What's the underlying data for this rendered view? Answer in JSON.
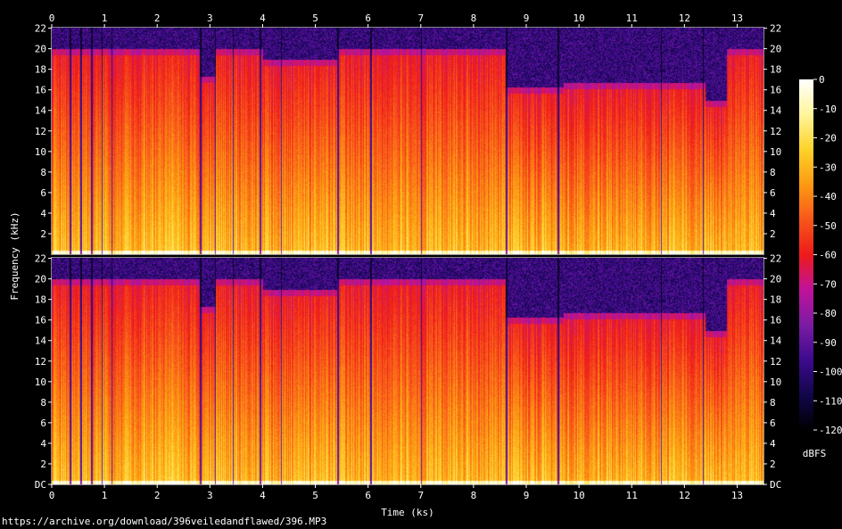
{
  "chart_data": {
    "type": "heatmap",
    "xlabel": "Time (ks)",
    "ylabel": "Frequency (kHz)",
    "x_ticks": [
      "0",
      "1",
      "2",
      "3",
      "4",
      "5",
      "6",
      "7",
      "8",
      "9",
      "10",
      "11",
      "12",
      "13"
    ],
    "x_range": [
      0,
      13.5
    ],
    "channels": [
      {
        "channel": 1,
        "y_ticks": [
          "22",
          "20",
          "18",
          "16",
          "14",
          "12",
          "10",
          "8",
          "6",
          "4",
          "2"
        ]
      },
      {
        "channel": 2,
        "y_ticks": [
          "22",
          "20",
          "18",
          "16",
          "14",
          "12",
          "10",
          "8",
          "6",
          "4",
          "2",
          "DC"
        ]
      }
    ],
    "y_range_khz": [
      0,
      22.05
    ],
    "colorbar": {
      "label": "dBFS",
      "ticks": [
        "0",
        "-10",
        "-20",
        "-30",
        "-40",
        "-50",
        "-60",
        "-70",
        "-80",
        "-90",
        "-100",
        "-110",
        "-120"
      ],
      "range": [
        -120,
        0
      ]
    },
    "lowpass_segments_khz": [
      {
        "start": 0,
        "end": 2.8,
        "cutoff": 20
      },
      {
        "start": 2.8,
        "end": 3.1,
        "cutoff": 17.3
      },
      {
        "start": 3.1,
        "end": 4.0,
        "cutoff": 20
      },
      {
        "start": 4.0,
        "end": 5.4,
        "cutoff": 19
      },
      {
        "start": 5.4,
        "end": 8.6,
        "cutoff": 20
      },
      {
        "start": 8.6,
        "end": 9.7,
        "cutoff": 16.3
      },
      {
        "start": 9.7,
        "end": 12.4,
        "cutoff": 16.7
      },
      {
        "start": 12.4,
        "end": 12.8,
        "cutoff": 15
      },
      {
        "start": 12.8,
        "end": 13.5,
        "cutoff": 20
      }
    ],
    "quiet_gaps_ks": [
      0.35,
      0.55,
      0.75,
      0.95,
      1.13,
      2.82,
      3.1,
      3.43,
      3.95,
      4.35,
      5.42,
      6.05,
      7.0,
      8.62,
      9.6,
      11.55,
      12.35
    ]
  },
  "footer": {
    "source_url": "https://archive.org/download/396veiledandflawed/396.MP3"
  },
  "colors": {
    "background": "#000000",
    "text": "#ffffff",
    "palette": [
      "#000000",
      "#12064a",
      "#3d0a8e",
      "#7a1ca3",
      "#c0129b",
      "#ee1a1a",
      "#f8561a",
      "#fc9a12",
      "#fdd22a",
      "#fff59a",
      "#ffffff"
    ]
  }
}
